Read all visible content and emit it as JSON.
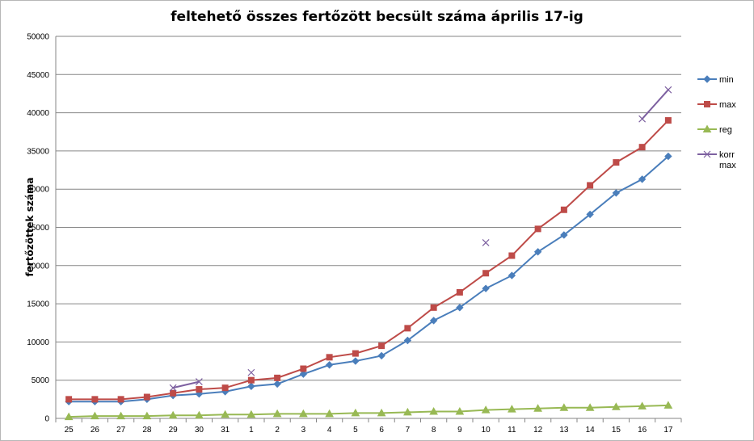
{
  "chart_data": {
    "type": "line",
    "title": "feltehető összes fertőzött becsült száma április 17-ig",
    "ylabel": "fertőzöttek száma",
    "xlabel": "",
    "ylim": [
      0,
      50000
    ],
    "yticks": [
      0,
      5000,
      10000,
      15000,
      20000,
      25000,
      30000,
      35000,
      40000,
      45000,
      50000
    ],
    "grid": "horizontal",
    "legend_position": "right",
    "categories": [
      "25",
      "26",
      "27",
      "28",
      "29",
      "30",
      "31",
      "1",
      "2",
      "3",
      "4",
      "5",
      "6",
      "7",
      "8",
      "9",
      "10",
      "11",
      "12",
      "13",
      "14",
      "15",
      "16",
      "17"
    ],
    "series": [
      {
        "name": "min",
        "color": "#4a7ebb",
        "marker": "diamond",
        "values": [
          2200,
          2200,
          2200,
          2500,
          3000,
          3200,
          3500,
          4200,
          4500,
          5800,
          7000,
          7500,
          8200,
          10200,
          12800,
          14500,
          17000,
          18700,
          21800,
          24000,
          26700,
          29500,
          31300,
          34300
        ]
      },
      {
        "name": "max",
        "color": "#be4b48",
        "marker": "square",
        "values": [
          2500,
          2500,
          2500,
          2800,
          3300,
          3800,
          4000,
          5000,
          5300,
          6500,
          8000,
          8500,
          9500,
          11800,
          14500,
          16500,
          19000,
          21300,
          24800,
          27300,
          30500,
          33500,
          35500,
          39000
        ]
      },
      {
        "name": "reg",
        "color": "#98b954",
        "marker": "triangle",
        "values": [
          200,
          300,
          300,
          300,
          400,
          400,
          500,
          500,
          600,
          600,
          600,
          700,
          700,
          800,
          900,
          900,
          1100,
          1200,
          1300,
          1400,
          1400,
          1500,
          1600,
          1700
        ]
      },
      {
        "name": "korr max",
        "color": "#7d60a0",
        "marker": "x",
        "values": [
          null,
          null,
          null,
          null,
          4000,
          4800,
          null,
          6000,
          null,
          null,
          null,
          null,
          null,
          null,
          null,
          null,
          23000,
          null,
          null,
          null,
          null,
          null,
          39200,
          43000
        ]
      }
    ]
  }
}
